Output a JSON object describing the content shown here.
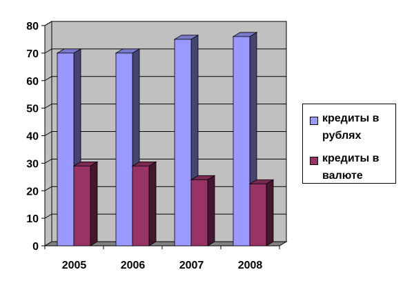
{
  "chart_data": {
    "type": "bar",
    "categories": [
      "2005",
      "2006",
      "2007",
      "2008"
    ],
    "series": [
      {
        "name": "кредиты в рублях",
        "values": [
          70,
          70,
          75,
          76
        ],
        "color": "#9999ff"
      },
      {
        "name": "кредиты в валюте",
        "values": [
          29,
          29,
          24,
          22.5
        ],
        "color": "#993366"
      }
    ],
    "ylim": [
      0,
      80
    ],
    "yticks": [
      0,
      10,
      20,
      30,
      40,
      50,
      60,
      70,
      80
    ],
    "grid": true,
    "legend_position": "right",
    "style": "3d-clustered-column",
    "wall_color": "#c0c0c0",
    "floor_color": "#808080"
  }
}
